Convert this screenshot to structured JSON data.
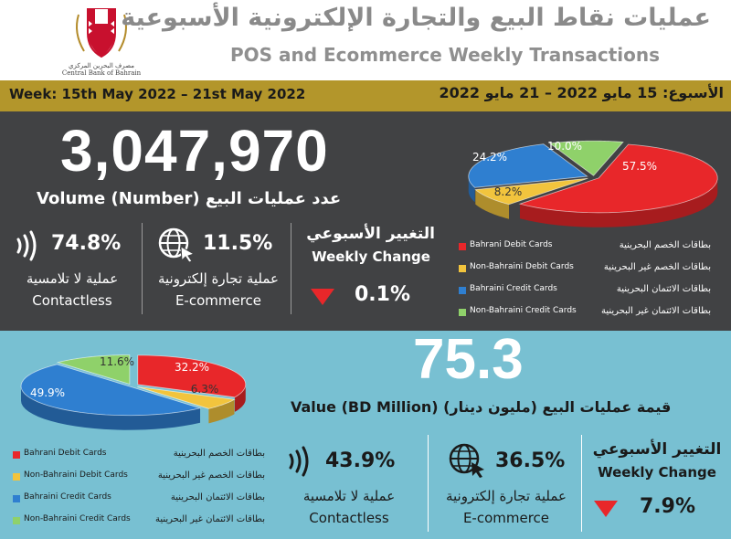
{
  "header": {
    "title_ar": "عمليات نقاط البيع والتجارة الإلكترونية الأسبوعية",
    "title_en": "POS and Ecommerce Weekly Transactions",
    "logo_ar": "مصرف البحرين المركزي",
    "logo_en": "Central Bank of Bahrain"
  },
  "week": {
    "en": "Week: 15th May 2022 – 21st May 2022",
    "ar": "الأسبوع: 15 مايو 2022 – 21 مايو 2022"
  },
  "volume": {
    "number": "3,047,970",
    "label": "Volume (Number) عدد عمليات البيع",
    "contactless_pct": "74.8%",
    "contactless_ar": "عملية لا تلامسية",
    "contactless_en": "Contactless",
    "ecommerce_pct": "11.5%",
    "ecommerce_ar": "عملية تجارة إلكترونية",
    "ecommerce_en": "E-commerce",
    "weekly_change_ar": "التغيير الأسبوعي",
    "weekly_change_en": "Weekly Change",
    "weekly_change_value": "0.1%"
  },
  "value": {
    "number": "75.3",
    "label": "Value (BD Million) (مليون دينار) قيمة عمليات البيع",
    "contactless_pct": "43.9%",
    "contactless_ar": "عملية لا تلامسية",
    "contactless_en": "Contactless",
    "ecommerce_pct": "36.5%",
    "ecommerce_ar": "عملية تجارة إلكترونية",
    "ecommerce_en": "E-commerce",
    "weekly_change_ar": "التغيير الأسبوعي",
    "weekly_change_en": "Weekly Change",
    "weekly_change_value": "7.9%"
  },
  "legend": [
    {
      "en": "Bahrani Debit Cards",
      "ar": "بطاقات الخصم البحرينية",
      "color": "#e8272a"
    },
    {
      "en": "Non-Bahraini Debit Cards",
      "ar": "بطاقات الخصم غير البحرينية",
      "color": "#f2c43d"
    },
    {
      "en": "Bahraini Credit Cards",
      "ar": "بطاقات الائتمان البحرينية",
      "color": "#2f7fd0"
    },
    {
      "en": "Non-Bahraini Credit Cards",
      "ar": "بطاقات الائتمان غير البحرينية",
      "color": "#8fd16a"
    }
  ],
  "colors": {
    "gold": "#b3962b",
    "dark_panel": "#414244",
    "blue_panel": "#78c0d2",
    "down_arrow": "#e8272a"
  },
  "chart_data": [
    {
      "type": "pie",
      "title": "Volume (Number)",
      "categories": [
        "Bahrani Debit Cards",
        "Non-Bahraini Debit Cards",
        "Bahraini Credit Cards",
        "Non-Bahraini Credit Cards"
      ],
      "values": [
        57.5,
        8.2,
        24.2,
        10.0
      ],
      "labels": [
        "57.5%",
        "8.2%",
        "24.2%",
        "10.0%"
      ]
    },
    {
      "type": "pie",
      "title": "Value (BD Million)",
      "categories": [
        "Bahrani Debit Cards",
        "Non-Bahraini Debit Cards",
        "Bahraini Credit Cards",
        "Non-Bahraini Credit Cards"
      ],
      "values": [
        32.2,
        6.3,
        49.9,
        11.6
      ],
      "labels": [
        "32.2%",
        "6.3%",
        "49.9%",
        "11.6%"
      ]
    }
  ]
}
